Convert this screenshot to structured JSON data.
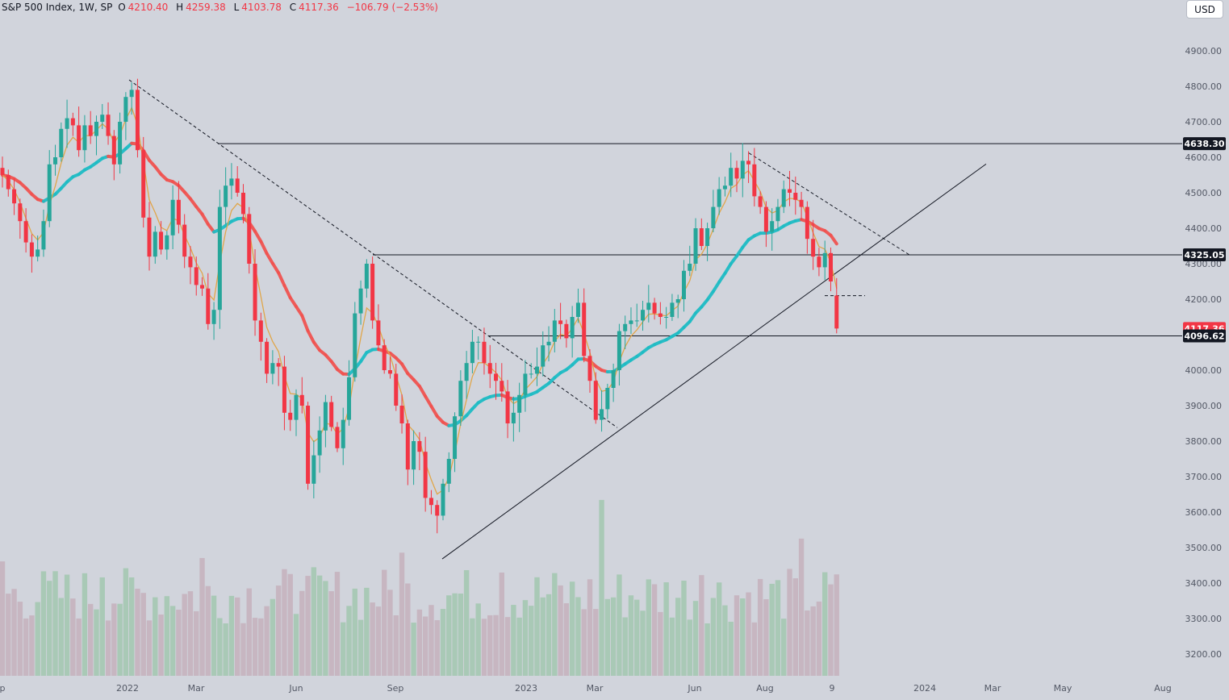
{
  "legend": {
    "symbol": "S&P 500 Index, 1W, SP",
    "open_prefix": "O",
    "open": "4210.40",
    "high_prefix": "H",
    "high": "4259.38",
    "low_prefix": "L",
    "low": "4103.78",
    "close_prefix": "C",
    "close": "4117.36",
    "change": "−106.79 (−2.53%)"
  },
  "currency_button": "USD",
  "colors": {
    "up": "#26a69a",
    "down": "#f23645",
    "ema_fast": "#e0a64a",
    "ema_slow_up": "#1fbcc4",
    "ema_slow_down": "#ef5350",
    "vol_up": "#a9c9b6",
    "vol_down": "#c7b6c1",
    "bg": "#d1d4dc"
  },
  "chart_data": {
    "type": "candlestick",
    "timeframe": "1W",
    "y_ticks": [
      "4900.00",
      "4800.00",
      "4700.00",
      "4600.00",
      "4500.00",
      "4400.00",
      "4300.00",
      "4200.00",
      "4100.00",
      "4000.00",
      "3900.00",
      "3800.00",
      "3700.00",
      "3600.00",
      "3500.00",
      "3400.00",
      "3300.00",
      "3200.00"
    ],
    "x_ticks": [
      "p",
      "2022",
      "Mar",
      "Jun",
      "Sep",
      "2023",
      "Mar",
      "Jun",
      "Aug",
      "9",
      "2024",
      "Mar",
      "May",
      "Aug"
    ],
    "ylim": [
      3150,
      4960
    ],
    "price_tags": [
      {
        "label": "4638.30",
        "value": 4638.3,
        "style": "dark"
      },
      {
        "label": "4325.05",
        "value": 4325.05,
        "style": "dark"
      },
      {
        "label": "4117.36",
        "value": 4117.36,
        "style": "red"
      },
      {
        "label": "4096.62",
        "value": 4096.62,
        "style": "dark"
      }
    ],
    "closes": [
      4550,
      4510,
      4470,
      4420,
      4360,
      4320,
      4340,
      4420,
      4580,
      4600,
      4680,
      4710,
      4690,
      4620,
      4690,
      4660,
      4700,
      4720,
      4660,
      4580,
      4700,
      4770,
      4790,
      4620,
      4430,
      4320,
      4390,
      4340,
      4380,
      4480,
      4410,
      4320,
      4290,
      4240,
      4230,
      4130,
      4170,
      4460,
      4520,
      4540,
      4500,
      4440,
      4300,
      4140,
      4080,
      3990,
      4020,
      4010,
      3880,
      3860,
      3930,
      3900,
      3680,
      3760,
      3830,
      3910,
      3840,
      3780,
      3860,
      3980,
      4160,
      4230,
      4300,
      4140,
      4070,
      4000,
      3990,
      3900,
      3850,
      3720,
      3800,
      3770,
      3640,
      3620,
      3590,
      3680,
      3750,
      3870,
      3970,
      4020,
      4080,
      4080,
      4020,
      3990,
      3970,
      3940,
      3850,
      3880,
      3930,
      3990,
      3990,
      4010,
      4070,
      4080,
      4140,
      4130,
      4090,
      4150,
      4190,
      4040,
      3970,
      3860,
      3890,
      3950,
      4000,
      4110,
      4130,
      4140,
      4140,
      4170,
      4190,
      4160,
      4150,
      4150,
      4190,
      4200,
      4280,
      4300,
      4400,
      4350,
      4400,
      4460,
      4510,
      4520,
      4570,
      4540,
      4590,
      4580,
      4490,
      4460,
      4390,
      4420,
      4460,
      4510,
      4500,
      4480,
      4460,
      4370,
      4320,
      4290,
      4330,
      4250,
      4117.36
    ],
    "start_open": 4570,
    "key_levels": [
      4638.3,
      4325.05,
      4096.62,
      4210
    ]
  }
}
